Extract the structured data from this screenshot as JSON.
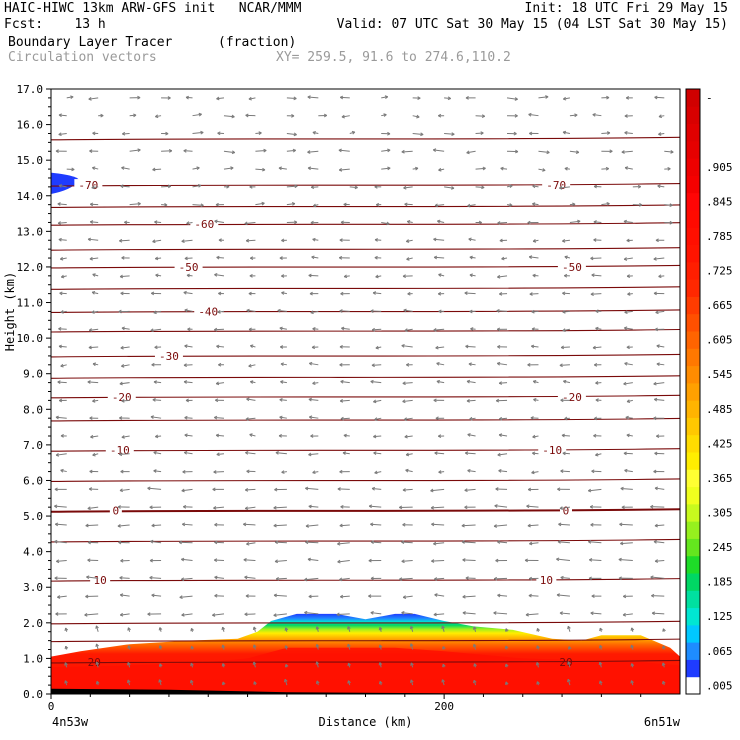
{
  "header": {
    "line1_left": "HAIC-HIWC 13km ARW-GFS init   NCAR/MMM",
    "line1_right": "Init: 18 UTC Fri 29 May 15",
    "line2_left": "Fcst:    13 h",
    "line2_right": "Valid: 07 UTC Sat 30 May 15 (04 LST Sat 30 May 15)",
    "field_name": "Boundary Layer Tracer",
    "field_units": "(fraction)",
    "vector_label": "Circulation vectors",
    "xsection_coords": "XY= 259.5, 91.6 to 274.6,110.2"
  },
  "chart_data": {
    "type": "heatmap",
    "title": "Boundary Layer Tracer",
    "xlabel": "Distance (km)",
    "ylabel": "Height (km)",
    "xlim": [
      0,
      320
    ],
    "ylim": [
      0,
      17
    ],
    "x_ticks": [
      {
        "value": 0,
        "label": "0"
      },
      {
        "value": 200,
        "label": "200"
      }
    ],
    "x_endpoints": {
      "left": "4n53w",
      "right": "6n51w"
    },
    "y_ticks": [
      {
        "value": 0,
        "label": "0.0"
      },
      {
        "value": 1,
        "label": "1.0"
      },
      {
        "value": 2,
        "label": "2.0"
      },
      {
        "value": 3,
        "label": "3.0"
      },
      {
        "value": 4,
        "label": "4.0"
      },
      {
        "value": 5,
        "label": "5.0"
      },
      {
        "value": 6,
        "label": "6.0"
      },
      {
        "value": 7,
        "label": "7.0"
      },
      {
        "value": 8,
        "label": "8.0"
      },
      {
        "value": 9,
        "label": "9.0"
      },
      {
        "value": 10,
        "label": "10.0"
      },
      {
        "value": 11,
        "label": "11.0"
      },
      {
        "value": 12,
        "label": "12.0"
      },
      {
        "value": 13,
        "label": "13.0"
      },
      {
        "value": 14,
        "label": "14.0"
      },
      {
        "value": 15,
        "label": "15.0"
      },
      {
        "value": 16,
        "label": "16.0"
      },
      {
        "value": 17,
        "label": "17.0"
      }
    ],
    "colorbar": {
      "levels": [
        {
          "label": ".005",
          "color": "#ffffff"
        },
        {
          "label": "",
          "color": "#1f3cff"
        },
        {
          "label": ".065",
          "color": "#1e8cff"
        },
        {
          "label": "",
          "color": "#00c8ff"
        },
        {
          "label": ".125",
          "color": "#00e6d2"
        },
        {
          "label": "",
          "color": "#00e0a0"
        },
        {
          "label": ".185",
          "color": "#00d764"
        },
        {
          "label": "",
          "color": "#1edc28"
        },
        {
          "label": ".245",
          "color": "#64e61e"
        },
        {
          "label": "",
          "color": "#96f01e"
        },
        {
          "label": ".305",
          "color": "#c8fa1e"
        },
        {
          "label": "",
          "color": "#f0ff1e"
        },
        {
          "label": ".365",
          "color": "#ffff32"
        },
        {
          "label": "",
          "color": "#ffee00"
        },
        {
          "label": ".425",
          "color": "#ffdc00"
        },
        {
          "label": "",
          "color": "#ffc800"
        },
        {
          "label": ".485",
          "color": "#ffb400"
        },
        {
          "label": "",
          "color": "#ffa000"
        },
        {
          "label": ".545",
          "color": "#ff8c00"
        },
        {
          "label": "",
          "color": "#ff7800"
        },
        {
          "label": ".605",
          "color": "#ff6400"
        },
        {
          "label": "",
          "color": "#ff5000"
        },
        {
          "label": ".665",
          "color": "#ff3c00"
        },
        {
          "label": "",
          "color": "#ff2800"
        },
        {
          "label": ".725",
          "color": "#ff1e00"
        },
        {
          "label": "",
          "color": "#ff1400"
        },
        {
          "label": ".785",
          "color": "#ff0f00"
        },
        {
          "label": "",
          "color": "#ff0a00"
        },
        {
          "label": ".845",
          "color": "#ff0505"
        },
        {
          "label": "",
          "color": "#f50000"
        },
        {
          "label": ".905",
          "color": "#ee0000"
        },
        {
          "label": "",
          "color": "#e60000"
        },
        {
          "label": "",
          "color": "#e00000"
        },
        {
          "label": "",
          "color": "#d80000"
        },
        {
          "label": "-",
          "color": "#d00000"
        }
      ]
    },
    "tracer_top_km": [
      [
        0,
        1.05
      ],
      [
        15,
        1.2
      ],
      [
        40,
        1.4
      ],
      [
        70,
        1.5
      ],
      [
        95,
        1.55
      ],
      [
        105,
        1.75
      ],
      [
        112,
        2.05
      ],
      [
        125,
        2.25
      ],
      [
        145,
        2.25
      ],
      [
        160,
        2.1
      ],
      [
        175,
        2.25
      ],
      [
        185,
        2.25
      ],
      [
        200,
        2.05
      ],
      [
        215,
        1.9
      ],
      [
        235,
        1.8
      ],
      [
        255,
        1.55
      ],
      [
        270,
        1.5
      ],
      [
        280,
        1.65
      ],
      [
        300,
        1.65
      ],
      [
        315,
        1.3
      ],
      [
        320,
        1.05
      ]
    ],
    "tracer_red_top_km": [
      [
        0,
        0.75
      ],
      [
        40,
        0.8
      ],
      [
        80,
        0.9
      ],
      [
        100,
        1.0
      ],
      [
        120,
        1.3
      ],
      [
        150,
        1.3
      ],
      [
        175,
        1.3
      ],
      [
        200,
        1.2
      ],
      [
        240,
        1.0
      ],
      [
        270,
        0.95
      ],
      [
        300,
        0.9
      ],
      [
        320,
        0.8
      ]
    ],
    "terrain_km": [
      [
        0,
        0.15
      ],
      [
        60,
        0.12
      ],
      [
        120,
        0.05
      ],
      [
        200,
        0.02
      ],
      [
        320,
        0.0
      ]
    ],
    "blob_upper": {
      "x_range": [
        0,
        14
      ],
      "y_center": 14.4,
      "half_height": 0.25
    },
    "temperature_contours": [
      {
        "value": 20,
        "label": "20",
        "height_km": 0.9,
        "label_positions_km": [
          22,
          262
        ]
      },
      {
        "value": 10,
        "label": "10",
        "height_km": 3.2,
        "label_positions_km": [
          25,
          252
        ]
      },
      {
        "value": 0,
        "label": "0",
        "height_km": 5.15,
        "label_positions_km": [
          33,
          262
        ]
      },
      {
        "value": -10,
        "label": "-10",
        "height_km": 6.85,
        "label_positions_km": [
          35,
          255
        ]
      },
      {
        "value": -20,
        "label": "-20",
        "height_km": 8.35,
        "label_positions_km": [
          36,
          265
        ]
      },
      {
        "value": -30,
        "label": "-30",
        "height_km": 9.5,
        "label_positions_km": [
          60
        ]
      },
      {
        "value": -40,
        "label": "-40",
        "height_km": 10.75,
        "label_positions_km": [
          80
        ]
      },
      {
        "value": -50,
        "label": "-50",
        "height_km": 12.0,
        "label_positions_km": [
          70,
          265
        ]
      },
      {
        "value": -60,
        "label": "-60",
        "height_km": 13.2,
        "label_positions_km": [
          78
        ]
      },
      {
        "value": -70,
        "label": "-70",
        "height_km": 14.3,
        "label_positions_km": [
          19,
          257
        ]
      }
    ],
    "extra_isotherm_heights_km": [
      1.5,
      2.0,
      4.3,
      6.0,
      7.7,
      8.9,
      10.2,
      11.4,
      12.5,
      13.7,
      15.6
    ],
    "vectors": {
      "x_spacing_km": 16,
      "y_spacing_km": 0.5,
      "mean_dx_pixels_dir": "westward"
    }
  }
}
